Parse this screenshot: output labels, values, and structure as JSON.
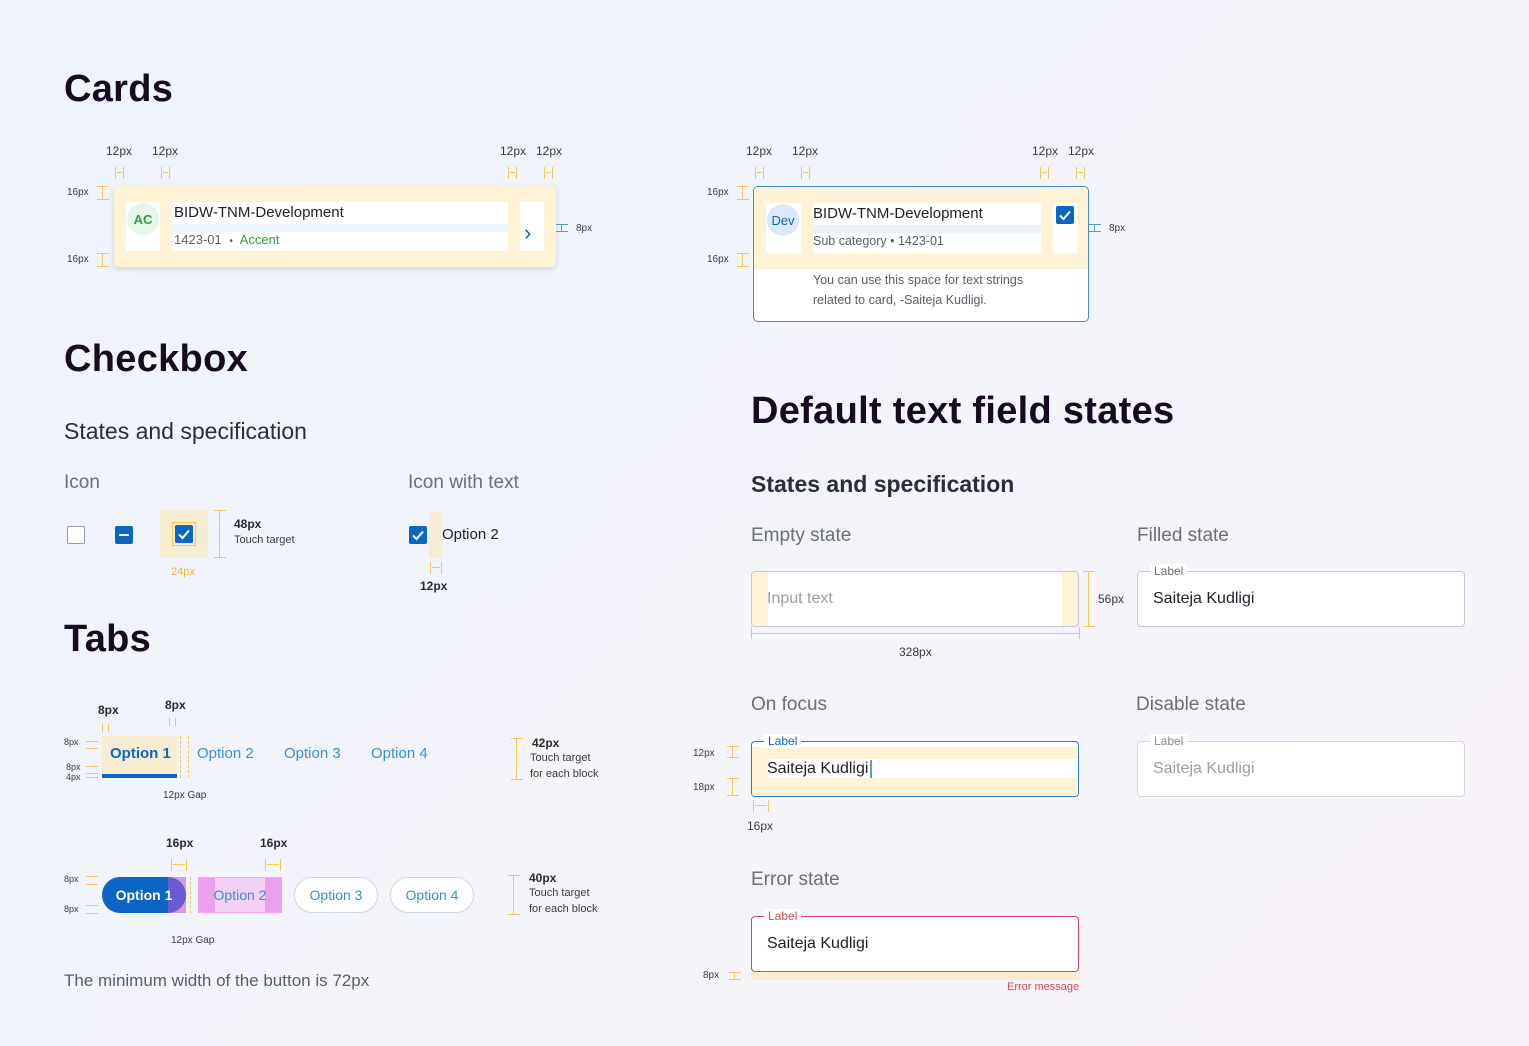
{
  "sections": {
    "cards": "Cards",
    "checkbox": "Checkbox",
    "checkbox_sub": "States and specification",
    "tabs": "Tabs",
    "textfield": "Default text field states",
    "textfield_sub": "States and specification"
  },
  "card1": {
    "avatar": "AC",
    "title": "BIDW-TNM-Development",
    "code": "1423-01",
    "separator": "•",
    "accent": "Accent",
    "chevron": "›"
  },
  "card2": {
    "avatar": "Dev",
    "title": "BIDW-TNM-Development",
    "subtitle": "Sub category • 1423-01",
    "body_line1": "You can use this space for text strings",
    "body_line2": "related to card, -Saiteja Kudligi."
  },
  "dims": {
    "d12": "12px",
    "d16": "16px",
    "d8": "8px",
    "d4": "4px",
    "d24": "24px",
    "d48": "48px",
    "d42": "42px",
    "d40": "40px",
    "d56": "56px",
    "d18": "18px",
    "d328": "328px",
    "touch_target": "Touch target",
    "touch_target_block": "Touch target",
    "for_each_block": "for each block",
    "gap12": "12px Gap"
  },
  "checkbox": {
    "icon_label": "Icon",
    "icon_text_label": "Icon with text",
    "option": "Option 2"
  },
  "tabs": {
    "underline": [
      "Option 1",
      "Option 2",
      "Option 3",
      "Option 4"
    ],
    "pills": [
      "Option 1",
      "Option 2",
      "Option 3",
      "Option 4"
    ],
    "min_width_note": "The minimum width of the button is 72px"
  },
  "fields": {
    "empty_label": "Empty state",
    "empty_placeholder": "Input text",
    "filled_label": "Filled state",
    "filled_field_label": "Label",
    "filled_value": "Saiteja Kudligi",
    "focus_label": "On focus",
    "focus_field_label": "Label",
    "focus_value": "Saiteja Kudligi",
    "disabled_label": "Disable state",
    "disabled_field_label": "Label",
    "disabled_value": "Saiteja Kudligi",
    "error_label": "Error state",
    "error_field_label": "Label",
    "error_value": "Saiteja Kudligi",
    "error_message": "Error message"
  },
  "colors": {
    "primary": "#0a66c2",
    "link": "#3b8ed0",
    "accent_green": "#2ea043",
    "error": "#d6455a",
    "spec_yellow": "#f2c85b",
    "spec_pink": "#f5a3f0"
  }
}
